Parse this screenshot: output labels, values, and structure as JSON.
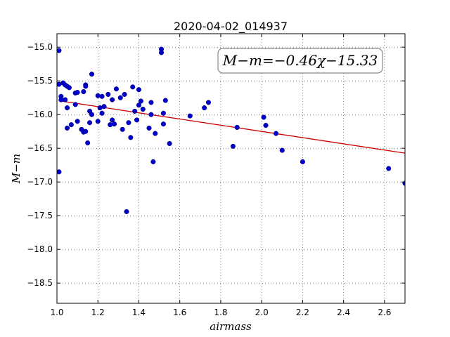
{
  "chart_data": {
    "type": "scatter",
    "title": "2020-04-02_014937",
    "xlabel": "airmass",
    "ylabel": "M−m",
    "xlim": [
      1.0,
      2.7
    ],
    "ylim": [
      -18.8,
      -14.8
    ],
    "y_inverted": true,
    "x_ticks": [
      1.0,
      1.2,
      1.4,
      1.6,
      1.8,
      2.0,
      2.2,
      2.4,
      2.6
    ],
    "x_tick_labels": [
      "1.0",
      "1.2",
      "1.4",
      "1.6",
      "1.8",
      "2.0",
      "2.2",
      "2.4",
      "2.6"
    ],
    "y_ticks": [
      -15.0,
      -15.5,
      -16.0,
      -16.5,
      -17.0,
      -17.5,
      -18.0,
      -18.5
    ],
    "y_tick_labels": [
      "−15.0",
      "−15.5",
      "−16.0",
      "−16.5",
      "−17.0",
      "−17.5",
      "−18.0",
      "−18.5"
    ],
    "grid": true,
    "annotation": "M−m=−0.46χ−15.33",
    "fit": {
      "slope": -0.46,
      "intercept": -15.33,
      "color": "#cc0000"
    },
    "point_color": "#0000cc",
    "points": [
      [
        1.01,
        -15.55
      ],
      [
        1.01,
        -15.05
      ],
      [
        1.01,
        -16.85
      ],
      [
        1.02,
        -15.73
      ],
      [
        1.02,
        -15.78
      ],
      [
        1.03,
        -15.53
      ],
      [
        1.04,
        -15.78
      ],
      [
        1.04,
        -15.56
      ],
      [
        1.05,
        -15.58
      ],
      [
        1.05,
        -16.2
      ],
      [
        1.05,
        -15.9
      ],
      [
        1.06,
        -15.6
      ],
      [
        1.07,
        -16.15
      ],
      [
        1.09,
        -15.85
      ],
      [
        1.09,
        -15.68
      ],
      [
        1.1,
        -15.67
      ],
      [
        1.1,
        -16.1
      ],
      [
        1.12,
        -16.22
      ],
      [
        1.13,
        -15.66
      ],
      [
        1.13,
        -16.26
      ],
      [
        1.14,
        -15.56
      ],
      [
        1.14,
        -15.58
      ],
      [
        1.14,
        -16.25
      ],
      [
        1.15,
        -16.42
      ],
      [
        1.16,
        -16.12
      ],
      [
        1.16,
        -15.95
      ],
      [
        1.17,
        -15.4
      ],
      [
        1.17,
        -16.0
      ],
      [
        1.2,
        -16.1
      ],
      [
        1.2,
        -15.72
      ],
      [
        1.21,
        -15.9
      ],
      [
        1.22,
        -15.98
      ],
      [
        1.22,
        -15.73
      ],
      [
        1.23,
        -15.88
      ],
      [
        1.25,
        -15.7
      ],
      [
        1.26,
        -16.15
      ],
      [
        1.27,
        -16.08
      ],
      [
        1.27,
        -15.78
      ],
      [
        1.28,
        -16.14
      ],
      [
        1.29,
        -15.62
      ],
      [
        1.31,
        -15.75
      ],
      [
        1.32,
        -16.22
      ],
      [
        1.33,
        -15.7
      ],
      [
        1.34,
        -17.44
      ],
      [
        1.35,
        -16.12
      ],
      [
        1.36,
        -16.34
      ],
      [
        1.37,
        -15.59
      ],
      [
        1.38,
        -15.95
      ],
      [
        1.39,
        -16.08
      ],
      [
        1.4,
        -15.86
      ],
      [
        1.4,
        -15.63
      ],
      [
        1.41,
        -15.8
      ],
      [
        1.42,
        -15.92
      ],
      [
        1.45,
        -16.2
      ],
      [
        1.46,
        -16.0
      ],
      [
        1.46,
        -15.82
      ],
      [
        1.47,
        -16.7
      ],
      [
        1.48,
        -16.28
      ],
      [
        1.51,
        -15.03
      ],
      [
        1.51,
        -15.08
      ],
      [
        1.52,
        -15.98
      ],
      [
        1.52,
        -16.14
      ],
      [
        1.53,
        -15.79
      ],
      [
        1.55,
        -16.43
      ],
      [
        1.65,
        -16.02
      ],
      [
        1.72,
        -15.9
      ],
      [
        1.74,
        -15.82
      ],
      [
        1.86,
        -16.47
      ],
      [
        1.88,
        -16.19
      ],
      [
        2.01,
        -16.04
      ],
      [
        2.02,
        -16.16
      ],
      [
        2.07,
        -16.28
      ],
      [
        2.1,
        -16.53
      ],
      [
        2.2,
        -16.7
      ],
      [
        2.62,
        -16.8
      ],
      [
        2.7,
        -17.02
      ]
    ]
  }
}
